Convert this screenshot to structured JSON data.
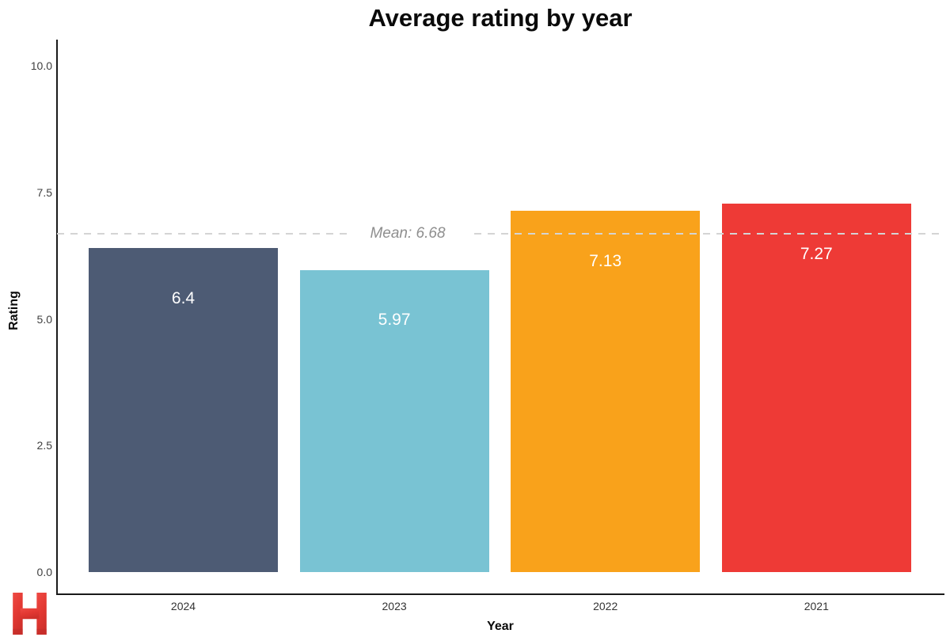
{
  "chart_data": {
    "type": "bar",
    "title": "Average rating by year",
    "xlabel": "Year",
    "ylabel": "Rating",
    "categories": [
      "2024",
      "2023",
      "2022",
      "2021"
    ],
    "values": [
      6.4,
      5.97,
      7.13,
      7.27
    ],
    "bar_labels": [
      "6.4",
      "5.97",
      "7.13",
      "7.27"
    ],
    "bar_colors": [
      "#4d5b74",
      "#79c3d3",
      "#f9a21b",
      "#ee3a36"
    ],
    "yticks": [
      0.0,
      2.5,
      5.0,
      7.5,
      10.0
    ],
    "ytick_labels": [
      "0.0",
      "2.5",
      "5.0",
      "7.5",
      "10.0"
    ],
    "ylim": [
      0,
      10.55
    ],
    "grid": false,
    "legend": false,
    "mean_line": {
      "value": 6.68,
      "label": "Mean: 6.68",
      "color": "#d4d4d4",
      "style": "dashed"
    }
  },
  "branding": {
    "logo_letter": "H",
    "logo_color": "#e03a34"
  }
}
